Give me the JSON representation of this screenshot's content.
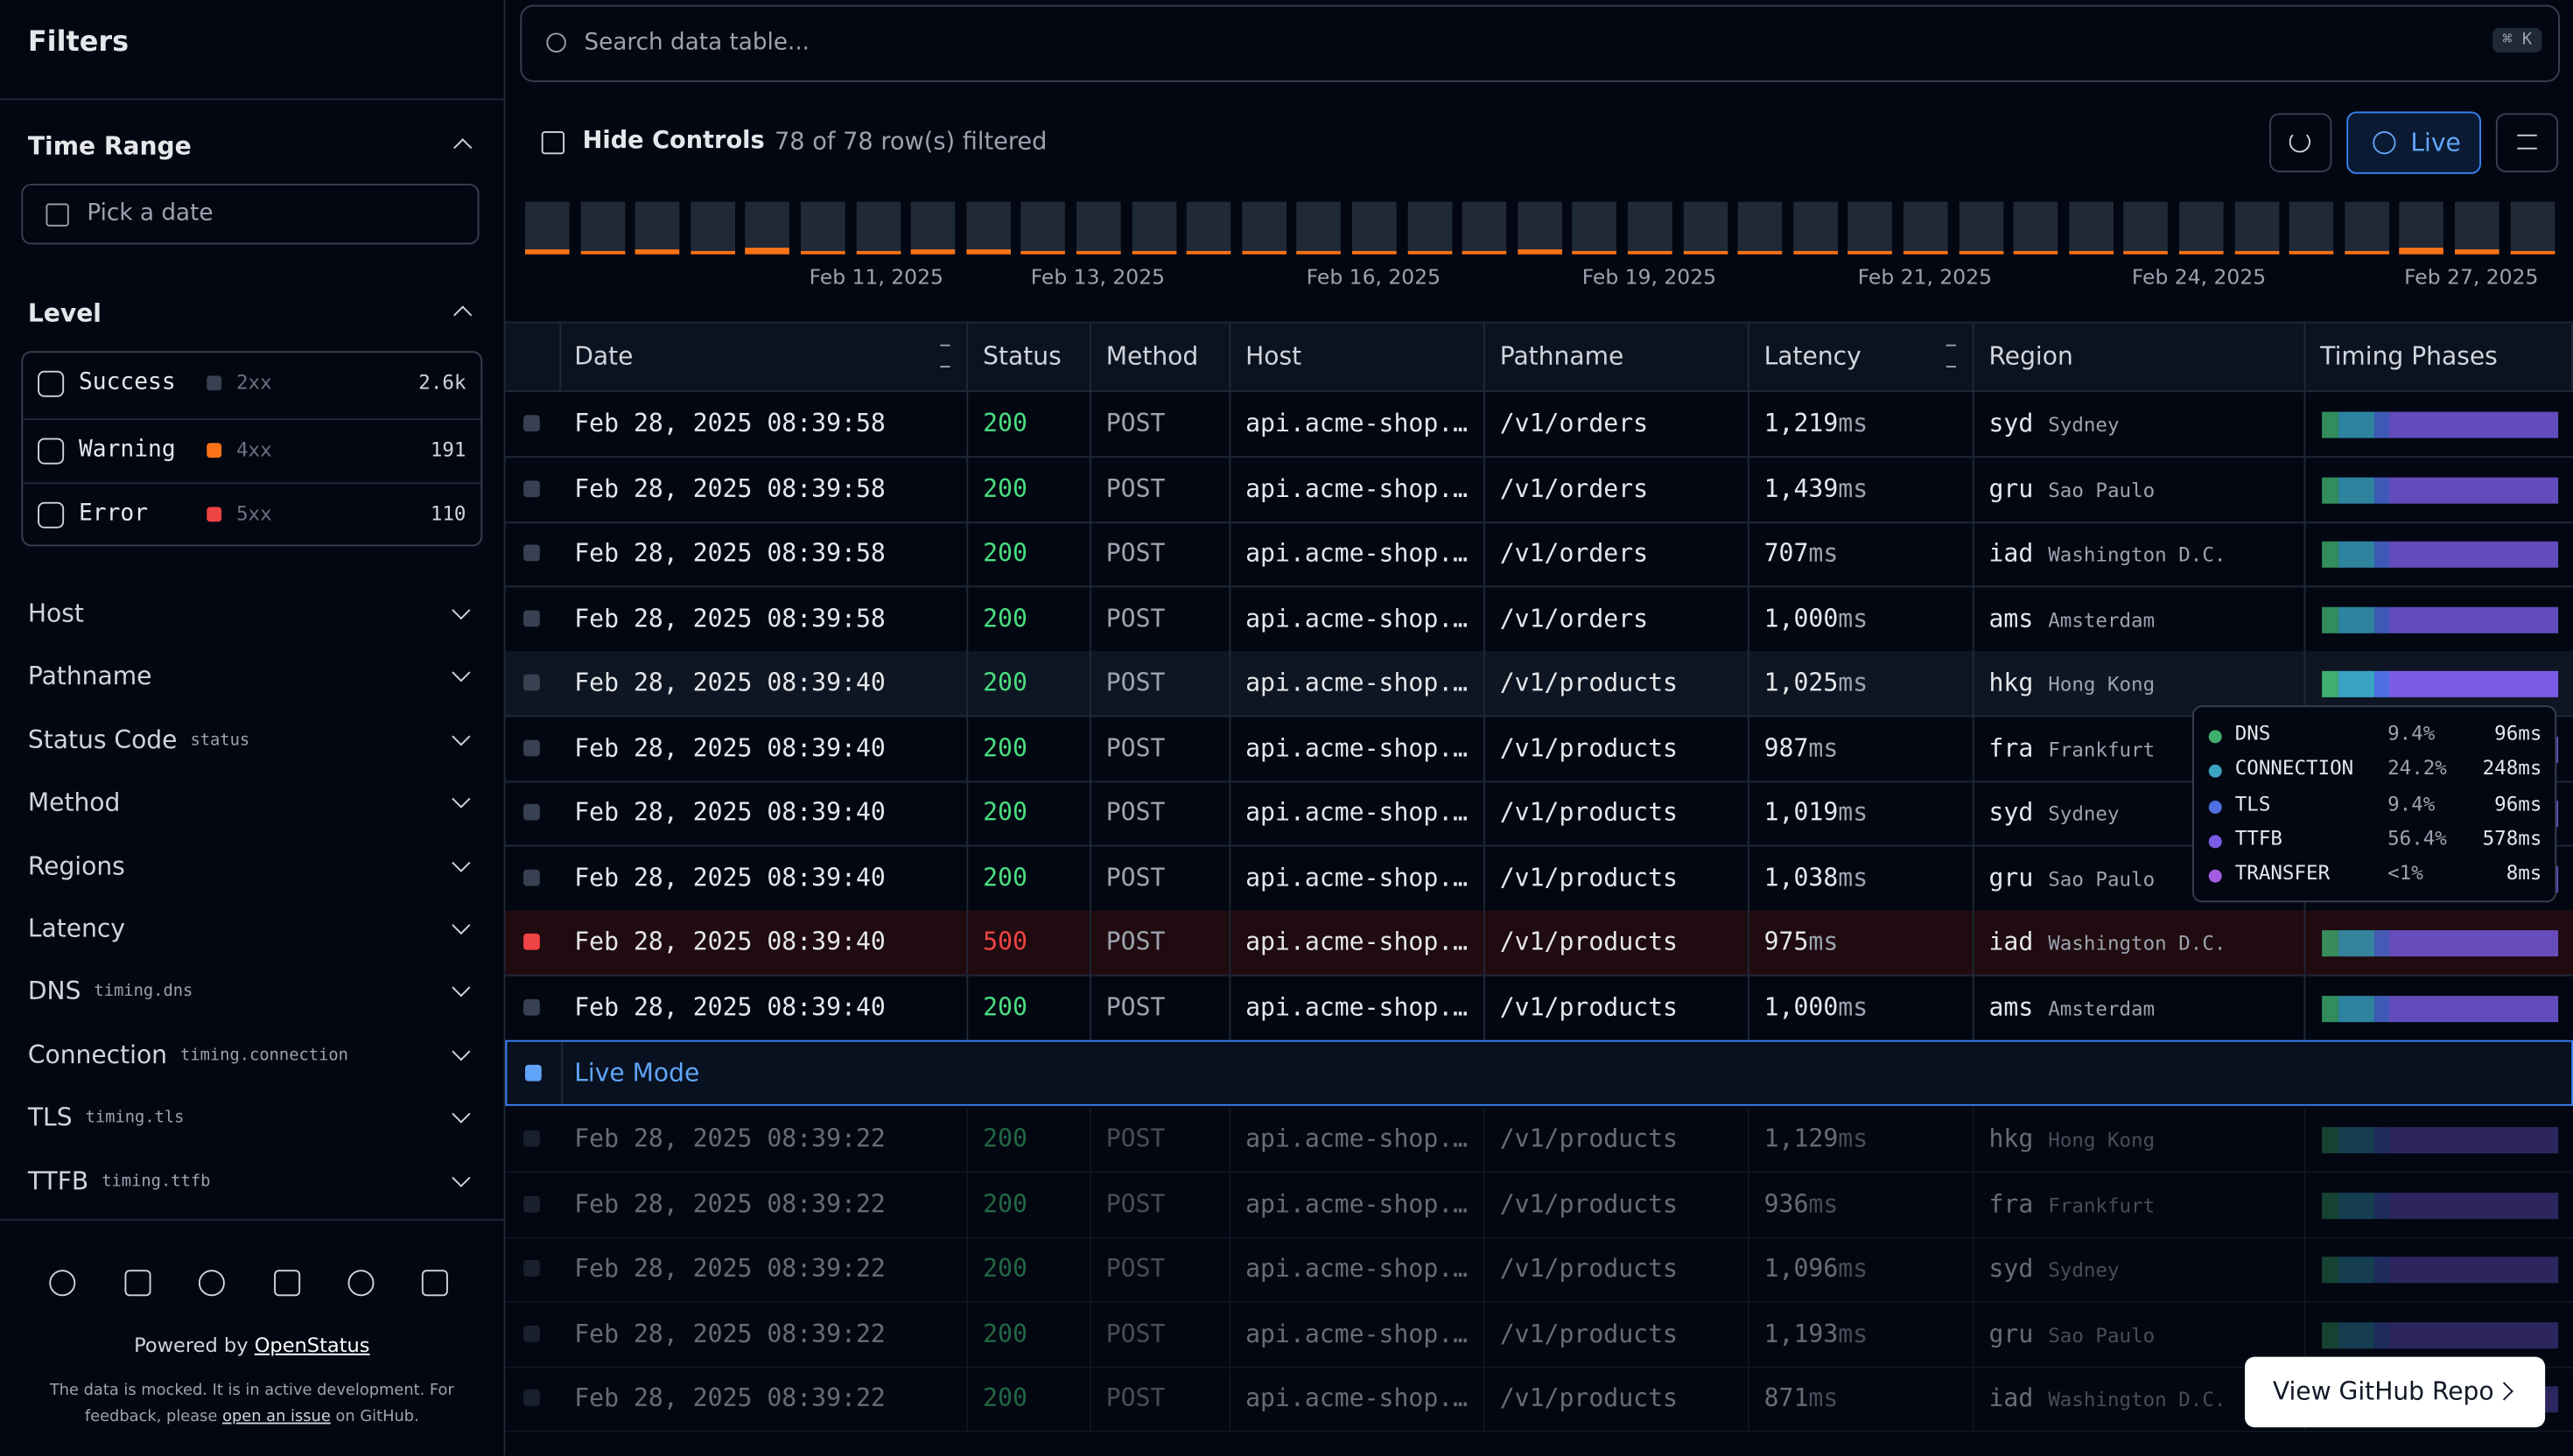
{
  "sidebar": {
    "title": "Filters",
    "time_range": {
      "label": "Time Range",
      "placeholder": "Pick a date"
    },
    "level": {
      "label": "Level",
      "options": [
        {
          "name": "Success",
          "code": "2xx",
          "count": "2.6k"
        },
        {
          "name": "Warning",
          "code": "4xx",
          "count": "191"
        },
        {
          "name": "Error",
          "code": "5xx",
          "count": "110"
        }
      ]
    },
    "facets": [
      {
        "label": "Host"
      },
      {
        "label": "Pathname"
      },
      {
        "label": "Status Code",
        "key": "status"
      },
      {
        "label": "Method"
      },
      {
        "label": "Regions"
      },
      {
        "label": "Latency"
      },
      {
        "label": "DNS",
        "key": "timing.dns"
      },
      {
        "label": "Connection",
        "key": "timing.connection"
      },
      {
        "label": "TLS",
        "key": "timing.tls"
      },
      {
        "label": "TTFB",
        "key": "timing.ttfb"
      }
    ],
    "footer": {
      "powered_by": "Powered by",
      "brand": "OpenStatus",
      "note_1": "The data is mocked. It is in active development. For",
      "note_2": "feedback, please",
      "note_link": "open an issue",
      "note_3": "on GitHub."
    }
  },
  "toolbar": {
    "search_placeholder": "Search data table...",
    "shortcut": "⌘ K",
    "hide_controls": "Hide Controls",
    "filtered": "78 of 78 row(s) filtered",
    "live": "Live"
  },
  "timeline": {
    "labels": [
      "Feb 11, 2025",
      "Feb 13, 2025",
      "Feb 16, 2025",
      "Feb 19, 2025",
      "Feb 21, 2025",
      "Feb 24, 2025",
      "Feb 27, 2025"
    ]
  },
  "table": {
    "columns": [
      "Date",
      "Status",
      "Method",
      "Host",
      "Pathname",
      "Latency",
      "Region",
      "Timing Phases"
    ],
    "latency_unit": "ms",
    "rows": [
      [
        "Feb 28, 2025 08:39:58",
        "200",
        "POST",
        "api.acme-shop.…",
        "/v1/orders",
        "1,219",
        "syd",
        "Sydney"
      ],
      [
        "Feb 28, 2025 08:39:58",
        "200",
        "POST",
        "api.acme-shop.…",
        "/v1/orders",
        "1,439",
        "gru",
        "Sao Paulo"
      ],
      [
        "Feb 28, 2025 08:39:58",
        "200",
        "POST",
        "api.acme-shop.…",
        "/v1/orders",
        "707",
        "iad",
        "Washington D.C."
      ],
      [
        "Feb 28, 2025 08:39:58",
        "200",
        "POST",
        "api.acme-shop.…",
        "/v1/orders",
        "1,000",
        "ams",
        "Amsterdam"
      ],
      [
        "Feb 28, 2025 08:39:40",
        "200",
        "POST",
        "api.acme-shop.…",
        "/v1/products",
        "1,025",
        "hkg",
        "Hong Kong"
      ],
      [
        "Feb 28, 2025 08:39:40",
        "200",
        "POST",
        "api.acme-shop.…",
        "/v1/products",
        "987",
        "fra",
        "Frankfurt"
      ],
      [
        "Feb 28, 2025 08:39:40",
        "200",
        "POST",
        "api.acme-shop.…",
        "/v1/products",
        "1,019",
        "syd",
        "Sydney"
      ],
      [
        "Feb 28, 2025 08:39:40",
        "200",
        "POST",
        "api.acme-shop.…",
        "/v1/products",
        "1,038",
        "gru",
        "Sao Paulo"
      ],
      [
        "Feb 28, 2025 08:39:40",
        "500",
        "POST",
        "api.acme-shop.…",
        "/v1/products",
        "975",
        "iad",
        "Washington D.C."
      ],
      [
        "Feb 28, 2025 08:39:40",
        "200",
        "POST",
        "api.acme-shop.…",
        "/v1/products",
        "1,000",
        "ams",
        "Amsterdam"
      ]
    ],
    "live_mode": "Live Mode",
    "past_rows": [
      [
        "Feb 28, 2025 08:39:22",
        "200",
        "POST",
        "api.acme-shop.…",
        "/v1/products",
        "1,129",
        "hkg",
        "Hong Kong"
      ],
      [
        "Feb 28, 2025 08:39:22",
        "200",
        "POST",
        "api.acme-shop.…",
        "/v1/products",
        "936",
        "fra",
        "Frankfurt"
      ],
      [
        "Feb 28, 2025 08:39:22",
        "200",
        "POST",
        "api.acme-shop.…",
        "/v1/products",
        "1,096",
        "syd",
        "Sydney"
      ],
      [
        "Feb 28, 2025 08:39:22",
        "200",
        "POST",
        "api.acme-shop.…",
        "/v1/products",
        "1,193",
        "gru",
        "Sao Paulo"
      ],
      [
        "Feb 28, 2025 08:39:22",
        "200",
        "POST",
        "api.acme-shop.…",
        "/v1/products",
        "871",
        "iad",
        "Washington D.C."
      ]
    ]
  },
  "tooltip": [
    {
      "phase": "DNS",
      "percent": "9.4%",
      "ms": "96ms",
      "color": "#3fae6e"
    },
    {
      "phase": "CONNECTION",
      "percent": "24.2%",
      "ms": "248ms",
      "color": "#3aa3c2"
    },
    {
      "phase": "TLS",
      "percent": "9.4%",
      "ms": "96ms",
      "color": "#4f6fe0"
    },
    {
      "phase": "TTFB",
      "percent": "56.4%",
      "ms": "578ms",
      "color": "#7b5ce6"
    },
    {
      "phase": "TRANSFER",
      "percent": "<1%",
      "ms": "8ms",
      "color": "#a35be0"
    }
  ],
  "github_button": "View GitHub Repo"
}
